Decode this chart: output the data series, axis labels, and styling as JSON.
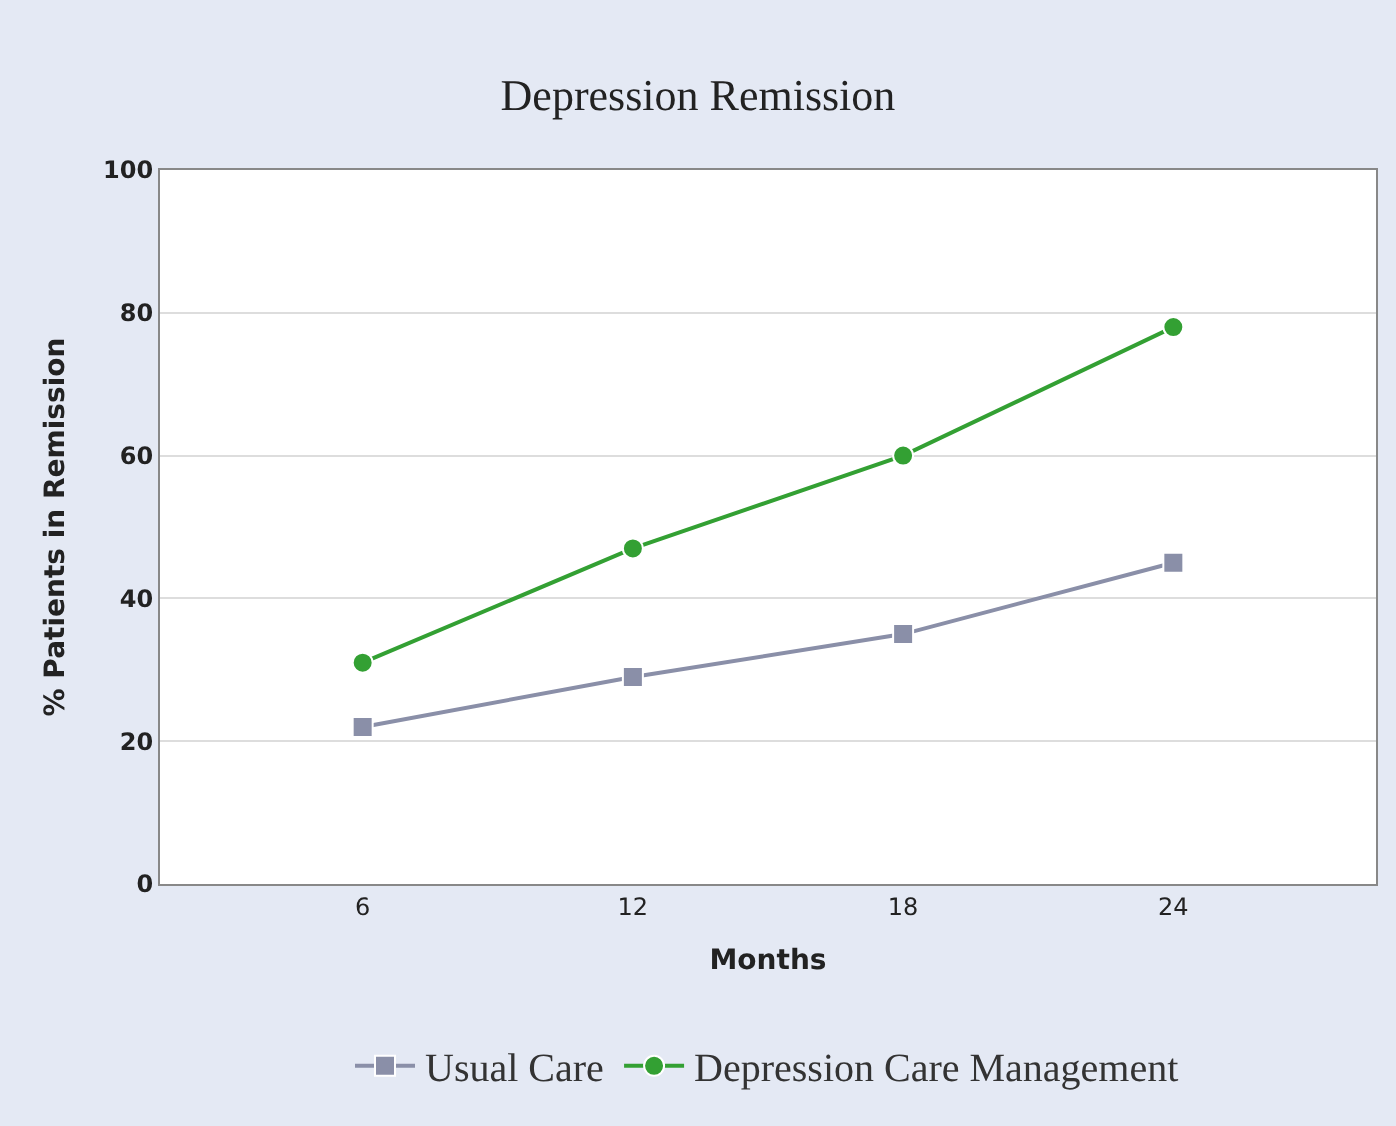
{
  "chart_data": {
    "type": "line",
    "title": "Depression Remission",
    "xlabel": "Months",
    "ylabel": "% Patients in Remission",
    "categories": [
      "6",
      "12",
      "18",
      "24"
    ],
    "series": [
      {
        "name": "Usual Care",
        "color": "#8a8fa8",
        "marker": "square",
        "values": [
          22,
          29,
          35,
          45
        ]
      },
      {
        "name": "Depression Care Management",
        "color": "#33a033",
        "marker": "circle",
        "values": [
          31,
          47,
          60,
          78
        ]
      }
    ],
    "ylim": [
      0,
      100
    ],
    "yticks": [
      0,
      20,
      40,
      60,
      80,
      100
    ],
    "grid": "y",
    "legend": "bottom"
  }
}
